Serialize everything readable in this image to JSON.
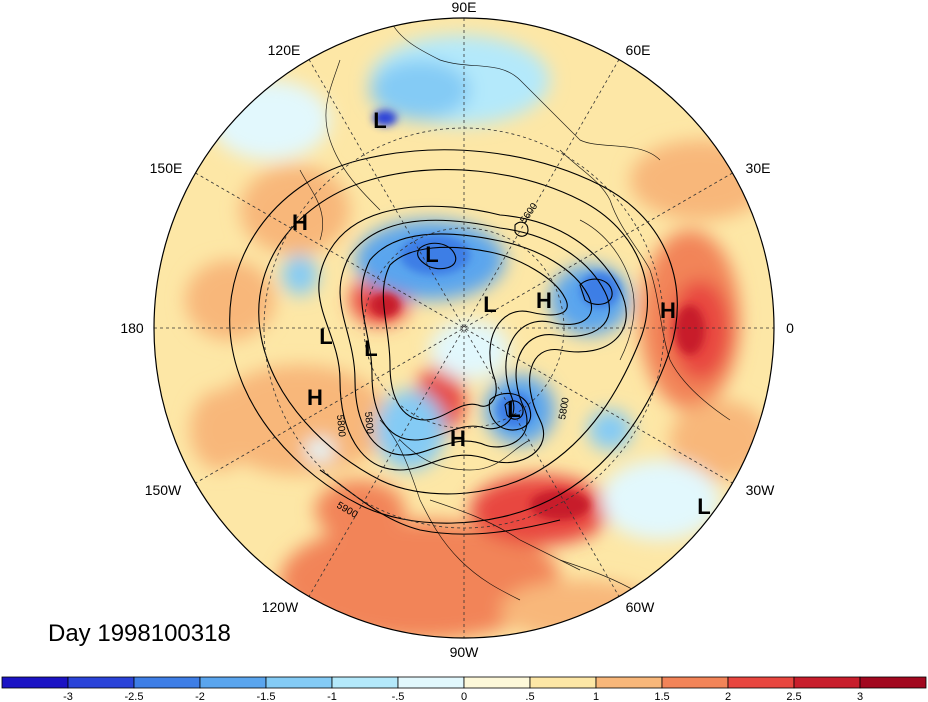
{
  "title": "Day 1998100318",
  "lon_labels": [
    {
      "key": "90E",
      "text": "90E"
    },
    {
      "key": "60E",
      "text": "60E"
    },
    {
      "key": "30E",
      "text": "30E"
    },
    {
      "key": "0",
      "text": "0"
    },
    {
      "key": "30W",
      "text": "30W"
    },
    {
      "key": "60W",
      "text": "60W"
    },
    {
      "key": "90W",
      "text": "90W"
    },
    {
      "key": "120W",
      "text": "120W"
    },
    {
      "key": "150W",
      "text": "150W"
    },
    {
      "key": "180",
      "text": "180"
    },
    {
      "key": "150E",
      "text": "150E"
    },
    {
      "key": "120E",
      "text": "120E"
    }
  ],
  "pressure_centers": [
    {
      "key": "L1",
      "type": "L"
    },
    {
      "key": "H1",
      "type": "H"
    },
    {
      "key": "L2",
      "type": "L"
    },
    {
      "key": "L3",
      "type": "L"
    },
    {
      "key": "H2",
      "type": "H"
    },
    {
      "key": "H3",
      "type": "H"
    },
    {
      "key": "L4",
      "type": "L"
    },
    {
      "key": "L5",
      "type": "L"
    },
    {
      "key": "H4",
      "type": "H"
    },
    {
      "key": "L6",
      "type": "L"
    },
    {
      "key": "H5",
      "type": "H"
    },
    {
      "key": "L7",
      "type": "L"
    }
  ],
  "contour_labels": [
    "5600",
    "5800",
    "5800",
    "5800",
    "5900"
  ],
  "colorbar": {
    "ticks": [
      "-3",
      "-2.5",
      "-2",
      "-1.5",
      "-1",
      "-.5",
      "0",
      ".5",
      "1",
      "1.5",
      "2",
      "2.5",
      "3"
    ],
    "colors": [
      "#1b13c4",
      "#2a43d8",
      "#3e7ee6",
      "#5aa5ee",
      "#84cbf5",
      "#b4e9fb",
      "#e2f8fd",
      "#fdf8d9",
      "#fde7a6",
      "#f8b77a",
      "#f28458",
      "#e8463f",
      "#c81e2c",
      "#a2081f"
    ]
  }
}
